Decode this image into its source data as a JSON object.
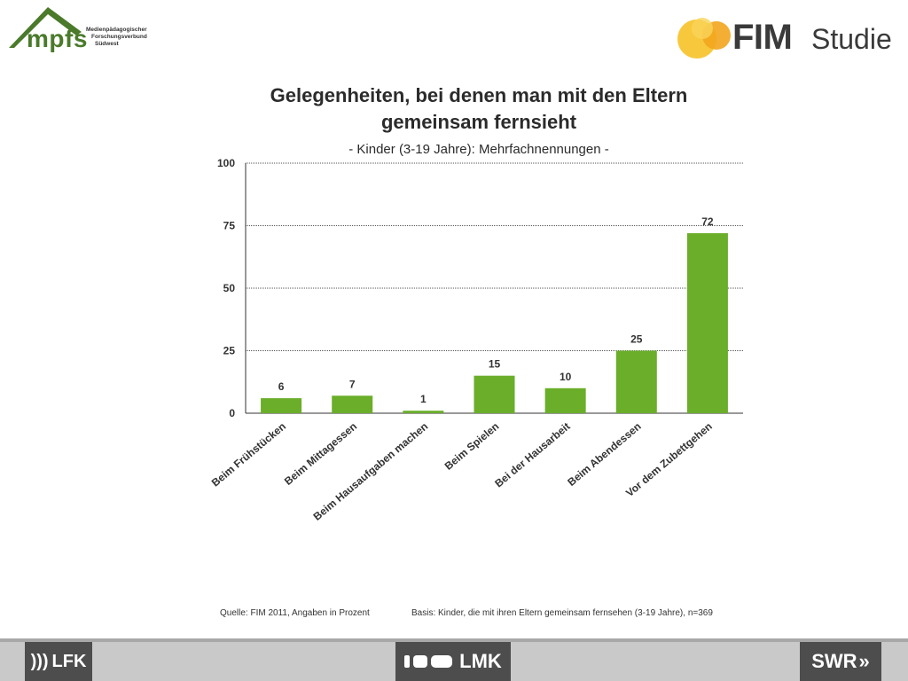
{
  "header": {
    "mpfs_name": "mpfs",
    "mpfs_line1": "Medienpädagogischer",
    "mpfs_line2": "Forschungsverbund",
    "mpfs_line3": "Südwest",
    "fim": "FIM",
    "studie": "Studie"
  },
  "colors": {
    "bar": "#6aae2a",
    "accent_green": "#4a7a2a",
    "logo_orange": "#f2a51d",
    "logo_yellow": "#f7c83c"
  },
  "chart_data": {
    "type": "bar",
    "title": "Gelegenheiten, bei denen man mit den Eltern gemeinsam fernsieht",
    "title_line1": "Gelegenheiten, bei denen man mit den Eltern",
    "title_line2": "gemeinsam fernsieht",
    "subtitle": "- Kinder (3-19 Jahre): Mehrfachnennungen -",
    "categories": [
      "Beim Frühstücken",
      "Beim Mittagessen",
      "Beim Hausaufgaben  machen",
      "Beim Spielen",
      "Bei der Hausarbeit",
      "Beim Abendessen",
      "Vor dem Zubettgehen"
    ],
    "values": [
      6,
      7,
      1,
      15,
      10,
      25,
      72
    ],
    "ylim": [
      0,
      100
    ],
    "yticks": [
      0,
      25,
      50,
      75,
      100
    ],
    "grid": true,
    "xlabel": "",
    "ylabel": ""
  },
  "footer": {
    "source": "Quelle: FIM 2011,  Angaben in Prozent",
    "basis": "Basis: Kinder, die mit ihren Eltern gemeinsam fernsehen (3-19 Jahre), n=369"
  },
  "brands": {
    "lfk": "LFK",
    "lmk": "LMK",
    "swr": "SWR"
  }
}
